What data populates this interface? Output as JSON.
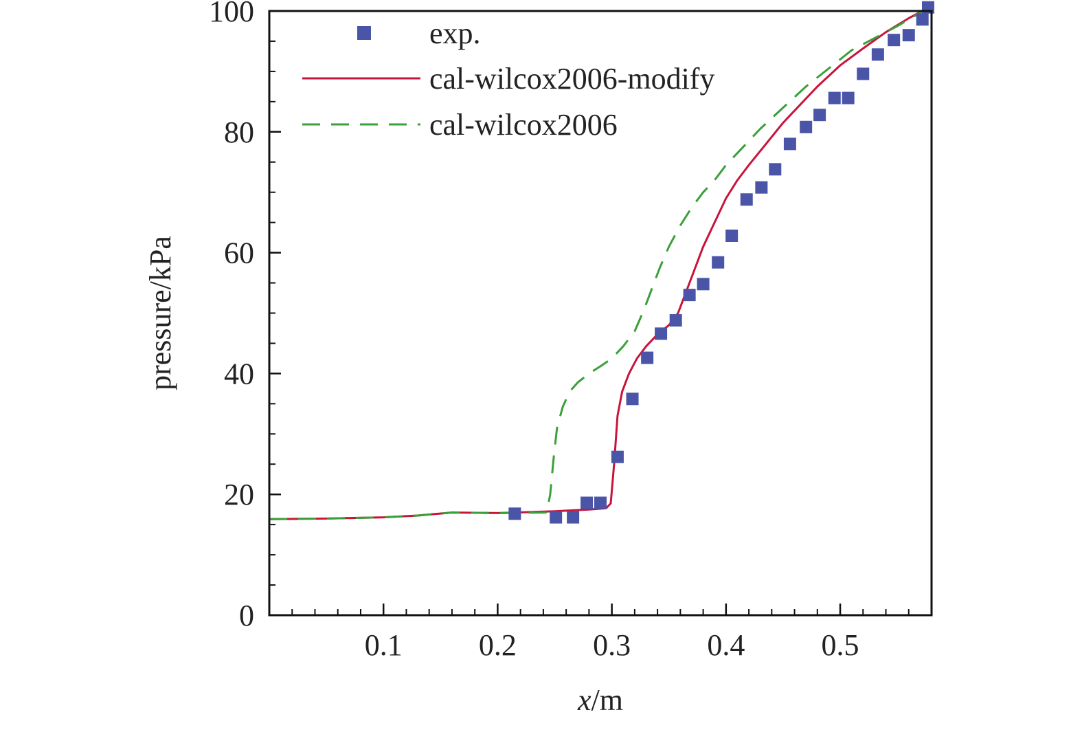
{
  "chart_data": {
    "type": "line",
    "xlabel": "x/m",
    "ylabel": "pressure/kPa",
    "xlim": [
      0.0,
      0.58
    ],
    "ylim": [
      0,
      100
    ],
    "x_ticks": [
      0.1,
      0.2,
      0.3,
      0.4,
      0.5
    ],
    "x_tick_labels": [
      "0.1",
      "0.2",
      "0.3",
      "0.4",
      "0.5"
    ],
    "x_minor_step": 0.02,
    "y_ticks": [
      0,
      20,
      40,
      60,
      80,
      100
    ],
    "y_tick_labels": [
      "0",
      "20",
      "40",
      "60",
      "80",
      "100"
    ],
    "y_minor_step": 5,
    "grid": false,
    "legend_position": "top-left",
    "legend": [
      {
        "label": "exp.",
        "style": "square-marker",
        "color": "#4a55a8"
      },
      {
        "label": "cal-wilcox2006-modify",
        "style": "solid",
        "color": "#c8143c"
      },
      {
        "label": "cal-wilcox2006",
        "style": "dashed",
        "color": "#3aa03a"
      }
    ],
    "series": [
      {
        "name": "exp.",
        "kind": "scatter",
        "color": "#4a55a8",
        "points": [
          [
            0.215,
            16.8
          ],
          [
            0.251,
            16.2
          ],
          [
            0.266,
            16.2
          ],
          [
            0.278,
            18.6
          ],
          [
            0.29,
            18.6
          ],
          [
            0.305,
            26.2
          ],
          [
            0.318,
            35.8
          ],
          [
            0.331,
            42.6
          ],
          [
            0.343,
            46.6
          ],
          [
            0.356,
            48.8
          ],
          [
            0.368,
            53.0
          ],
          [
            0.38,
            54.8
          ],
          [
            0.393,
            58.4
          ],
          [
            0.405,
            62.8
          ],
          [
            0.418,
            68.8
          ],
          [
            0.431,
            70.8
          ],
          [
            0.443,
            73.8
          ],
          [
            0.456,
            78.0
          ],
          [
            0.47,
            80.8
          ],
          [
            0.482,
            82.8
          ],
          [
            0.495,
            85.6
          ],
          [
            0.507,
            85.6
          ],
          [
            0.52,
            89.6
          ],
          [
            0.533,
            92.8
          ],
          [
            0.547,
            95.2
          ],
          [
            0.56,
            96.0
          ],
          [
            0.572,
            98.6
          ],
          [
            0.577,
            100.6
          ]
        ]
      },
      {
        "name": "cal-wilcox2006-modify",
        "kind": "line",
        "color": "#c8143c",
        "points": [
          [
            0.0,
            15.9
          ],
          [
            0.05,
            16.0
          ],
          [
            0.1,
            16.2
          ],
          [
            0.13,
            16.5
          ],
          [
            0.16,
            17.0
          ],
          [
            0.2,
            16.9
          ],
          [
            0.25,
            17.2
          ],
          [
            0.28,
            17.5
          ],
          [
            0.295,
            17.7
          ],
          [
            0.299,
            18.5
          ],
          [
            0.302,
            25.0
          ],
          [
            0.305,
            33.0
          ],
          [
            0.309,
            37.0
          ],
          [
            0.315,
            40.0
          ],
          [
            0.322,
            42.5
          ],
          [
            0.33,
            44.5
          ],
          [
            0.34,
            46.5
          ],
          [
            0.35,
            48.0
          ],
          [
            0.358,
            50.0
          ],
          [
            0.365,
            53.5
          ],
          [
            0.372,
            57.0
          ],
          [
            0.38,
            61.0
          ],
          [
            0.39,
            65.0
          ],
          [
            0.4,
            69.0
          ],
          [
            0.41,
            72.0
          ],
          [
            0.42,
            74.5
          ],
          [
            0.435,
            78.0
          ],
          [
            0.45,
            81.5
          ],
          [
            0.465,
            84.5
          ],
          [
            0.48,
            87.5
          ],
          [
            0.5,
            91.0
          ],
          [
            0.52,
            93.8
          ],
          [
            0.54,
            96.5
          ],
          [
            0.56,
            98.8
          ],
          [
            0.58,
            100.8
          ]
        ]
      },
      {
        "name": "cal-wilcox2006",
        "kind": "dashed",
        "color": "#3aa03a",
        "points": [
          [
            0.0,
            15.9
          ],
          [
            0.05,
            16.0
          ],
          [
            0.1,
            16.2
          ],
          [
            0.13,
            16.5
          ],
          [
            0.16,
            17.0
          ],
          [
            0.2,
            16.9
          ],
          [
            0.243,
            17.0
          ],
          [
            0.246,
            20.0
          ],
          [
            0.249,
            26.0
          ],
          [
            0.252,
            31.0
          ],
          [
            0.257,
            34.5
          ],
          [
            0.263,
            37.0
          ],
          [
            0.27,
            38.5
          ],
          [
            0.28,
            40.0
          ],
          [
            0.29,
            41.2
          ],
          [
            0.3,
            42.5
          ],
          [
            0.31,
            44.5
          ],
          [
            0.32,
            47.0
          ],
          [
            0.328,
            50.5
          ],
          [
            0.335,
            54.0
          ],
          [
            0.342,
            57.5
          ],
          [
            0.35,
            61.0
          ],
          [
            0.36,
            64.5
          ],
          [
            0.37,
            67.5
          ],
          [
            0.38,
            70.0
          ],
          [
            0.39,
            72.0
          ],
          [
            0.4,
            74.5
          ],
          [
            0.415,
            77.5
          ],
          [
            0.43,
            80.5
          ],
          [
            0.45,
            84.0
          ],
          [
            0.47,
            87.5
          ],
          [
            0.49,
            90.5
          ],
          [
            0.51,
            93.5
          ],
          [
            0.53,
            95.5
          ],
          [
            0.55,
            97.5
          ],
          [
            0.58,
            100.8
          ]
        ]
      }
    ]
  }
}
